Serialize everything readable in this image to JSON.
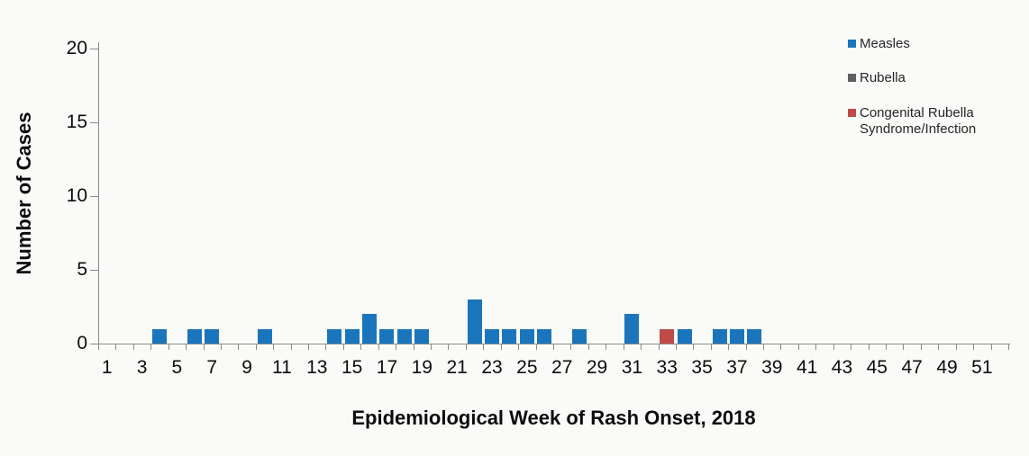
{
  "chart_data": {
    "type": "bar",
    "title": "",
    "xlabel": "Epidemiological Week of Rash Onset, 2018",
    "ylabel": "Number of Cases",
    "x": [
      1,
      2,
      3,
      4,
      5,
      6,
      7,
      8,
      9,
      10,
      11,
      12,
      13,
      14,
      15,
      16,
      17,
      18,
      19,
      20,
      21,
      22,
      23,
      24,
      25,
      26,
      27,
      28,
      29,
      30,
      31,
      32,
      33,
      34,
      35,
      36,
      37,
      38,
      39,
      40,
      41,
      42,
      43,
      44,
      45,
      46,
      47,
      48,
      49,
      50,
      51,
      52
    ],
    "xtick_labels": [
      "1",
      "3",
      "5",
      "7",
      "9",
      "11",
      "13",
      "15",
      "17",
      "19",
      "21",
      "23",
      "25",
      "27",
      "29",
      "31",
      "33",
      "35",
      "37",
      "39",
      "41",
      "43",
      "45",
      "47",
      "49",
      "51"
    ],
    "yticks": [
      0,
      5,
      10,
      15,
      20
    ],
    "ylim": [
      0,
      20
    ],
    "xlim": [
      0.5,
      52.5
    ],
    "grid": false,
    "legend_position": "top-right",
    "background_color": "#fafaf8",
    "axis_color": "#8a8a8a",
    "series": [
      {
        "name": "Measles",
        "color": "#1b75bc",
        "values": [
          0,
          0,
          0,
          1,
          0,
          1,
          1,
          0,
          0,
          1,
          0,
          0,
          0,
          1,
          1,
          2,
          1,
          1,
          1,
          0,
          0,
          3,
          1,
          1,
          1,
          1,
          0,
          1,
          0,
          0,
          2,
          0,
          0,
          1,
          0,
          1,
          1,
          1,
          0,
          0,
          0,
          0,
          0,
          0,
          0,
          0,
          0,
          0,
          0,
          0,
          0,
          0
        ]
      },
      {
        "name": "Rubella",
        "color": "#605f5f",
        "values": [
          0,
          0,
          0,
          0,
          0,
          0,
          0,
          0,
          0,
          0,
          0,
          0,
          0,
          0,
          0,
          0,
          0,
          0,
          0,
          0,
          0,
          0,
          0,
          0,
          0,
          0,
          0,
          0,
          0,
          0,
          0,
          0,
          0,
          0,
          0,
          0,
          0,
          0,
          0,
          0,
          0,
          0,
          0,
          0,
          0,
          0,
          0,
          0,
          0,
          0,
          0,
          0
        ]
      },
      {
        "name": "Congenital Rubella Syndrome/Infection",
        "color": "#be4b4a",
        "values": [
          0,
          0,
          0,
          0,
          0,
          0,
          0,
          0,
          0,
          0,
          0,
          0,
          0,
          0,
          0,
          0,
          0,
          0,
          0,
          0,
          0,
          0,
          0,
          0,
          0,
          0,
          0,
          0,
          0,
          0,
          0,
          0,
          1,
          0,
          0,
          0,
          0,
          0,
          0,
          0,
          0,
          0,
          0,
          0,
          0,
          0,
          0,
          0,
          0,
          0,
          0,
          0
        ]
      }
    ]
  }
}
